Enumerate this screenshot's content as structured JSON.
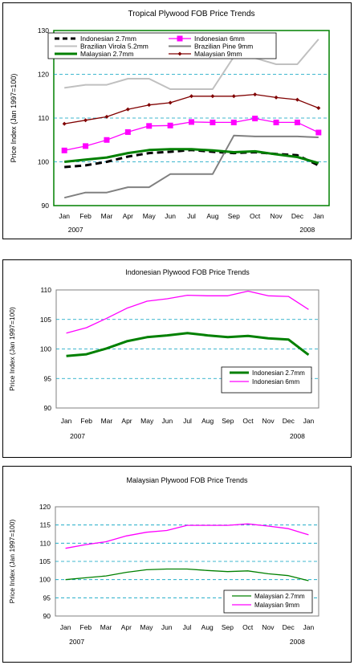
{
  "chart_data": [
    {
      "type": "line",
      "title": "Tropical Plywood FOB Price Trends",
      "ylabel": "Price Index (Jan 1997=100)",
      "xlabel": "",
      "ylim": [
        90,
        130
      ],
      "yticks": [
        90,
        100,
        110,
        120,
        130
      ],
      "grid": true,
      "plot_bg": "#ffffff",
      "categories": [
        "Jan",
        "Feb",
        "Mar",
        "Apr",
        "May",
        "Jun",
        "Jul",
        "Aug",
        "Sep",
        "Oct",
        "Nov",
        "Dec",
        "Jan"
      ],
      "year_labels": [
        "2007",
        "2008"
      ],
      "legend_position": "top-left",
      "series": [
        {
          "name": "Indonesian 2.7mm",
          "color": "#000000",
          "style": "dashed",
          "values": [
            98.8,
            99.2,
            100.0,
            101.2,
            102.0,
            102.3,
            102.7,
            102.3,
            102.0,
            102.2,
            101.8,
            101.5,
            99.2
          ]
        },
        {
          "name": "Indonesian 6mm",
          "color": "#ff00ff",
          "style": "square-markers",
          "values": [
            102.6,
            103.6,
            105.0,
            106.8,
            108.2,
            108.3,
            109.1,
            109.0,
            109.0,
            109.9,
            109.0,
            109.0,
            106.7
          ]
        },
        {
          "name": "Brazilian Virola 5.2mm",
          "color": "#c0c0c0",
          "style": "solid",
          "values": [
            116.9,
            117.6,
            117.6,
            119.0,
            119.0,
            116.6,
            116.6,
            116.6,
            124.0,
            123.7,
            122.3,
            122.3,
            128.0
          ]
        },
        {
          "name": "Brazilian Pine 9mm",
          "color": "#808080",
          "style": "solid",
          "values": [
            91.8,
            93.0,
            93.0,
            94.2,
            94.2,
            97.2,
            97.2,
            97.2,
            106.0,
            105.8,
            105.8,
            105.8,
            105.6
          ]
        },
        {
          "name": "Malaysian 2.7mm",
          "color": "#008000",
          "style": "thick",
          "values": [
            100.0,
            100.5,
            101.0,
            102.0,
            102.7,
            102.9,
            102.9,
            102.6,
            102.2,
            102.4,
            101.7,
            101.1,
            99.7
          ]
        },
        {
          "name": "Malaysian 9mm",
          "color": "#800000",
          "style": "diamond-markers",
          "values": [
            108.7,
            109.5,
            110.3,
            112.0,
            113.0,
            113.5,
            115.0,
            115.0,
            115.0,
            115.4,
            114.7,
            114.2,
            112.3
          ]
        }
      ]
    },
    {
      "type": "line",
      "title": "Indonesian Plywood FOB Price Trends",
      "ylabel": "Price Index (Jan 1997=100)",
      "xlabel": "",
      "ylim": [
        90,
        110
      ],
      "yticks": [
        90,
        95,
        100,
        105,
        110
      ],
      "grid": true,
      "plot_bg": "#ffffff",
      "categories": [
        "Jan",
        "Feb",
        "Mar",
        "Apr",
        "May",
        "Jun",
        "Jul",
        "Aug",
        "Sep",
        "Oct",
        "Nov",
        "Dec",
        "Jan"
      ],
      "year_labels": [
        "2007",
        "2008"
      ],
      "legend_position": "bottom-right",
      "series": [
        {
          "name": "Indonesian 2.7mm",
          "color": "#008000",
          "style": "thick",
          "values": [
            98.8,
            99.1,
            100.1,
            101.3,
            102.0,
            102.3,
            102.7,
            102.3,
            102.0,
            102.2,
            101.8,
            101.6,
            99.0
          ]
        },
        {
          "name": "Indonesian 6mm",
          "color": "#ff00ff",
          "style": "solid",
          "values": [
            102.7,
            103.6,
            105.2,
            106.9,
            108.1,
            108.5,
            109.1,
            109.0,
            109.0,
            109.8,
            109.0,
            108.9,
            106.7
          ]
        }
      ]
    },
    {
      "type": "line",
      "title": "Malaysian Plywood FOB Price Trends",
      "ylabel": "Price Index (Jan 1997=100)",
      "xlabel": "",
      "ylim": [
        90,
        120
      ],
      "yticks": [
        90,
        95,
        100,
        105,
        110,
        115,
        120
      ],
      "grid": true,
      "plot_bg": "#ffffff",
      "categories": [
        "Jan",
        "Feb",
        "Mar",
        "Apr",
        "May",
        "Jun",
        "Jul",
        "Aug",
        "Sep",
        "Oct",
        "Nov",
        "Dec",
        "Jan"
      ],
      "year_labels": [
        "2007",
        "2008"
      ],
      "legend_position": "bottom-right",
      "series": [
        {
          "name": "Malaysian 2.7mm",
          "color": "#008000",
          "style": "solid",
          "values": [
            100.0,
            100.5,
            101.0,
            102.0,
            102.7,
            102.9,
            102.9,
            102.5,
            102.2,
            102.4,
            101.6,
            101.1,
            99.7
          ]
        },
        {
          "name": "Malaysian 9mm",
          "color": "#ff00ff",
          "style": "solid",
          "values": [
            108.6,
            109.6,
            110.4,
            112.0,
            113.0,
            113.5,
            114.9,
            114.9,
            114.9,
            115.3,
            114.7,
            114.0,
            112.3
          ]
        }
      ]
    }
  ]
}
